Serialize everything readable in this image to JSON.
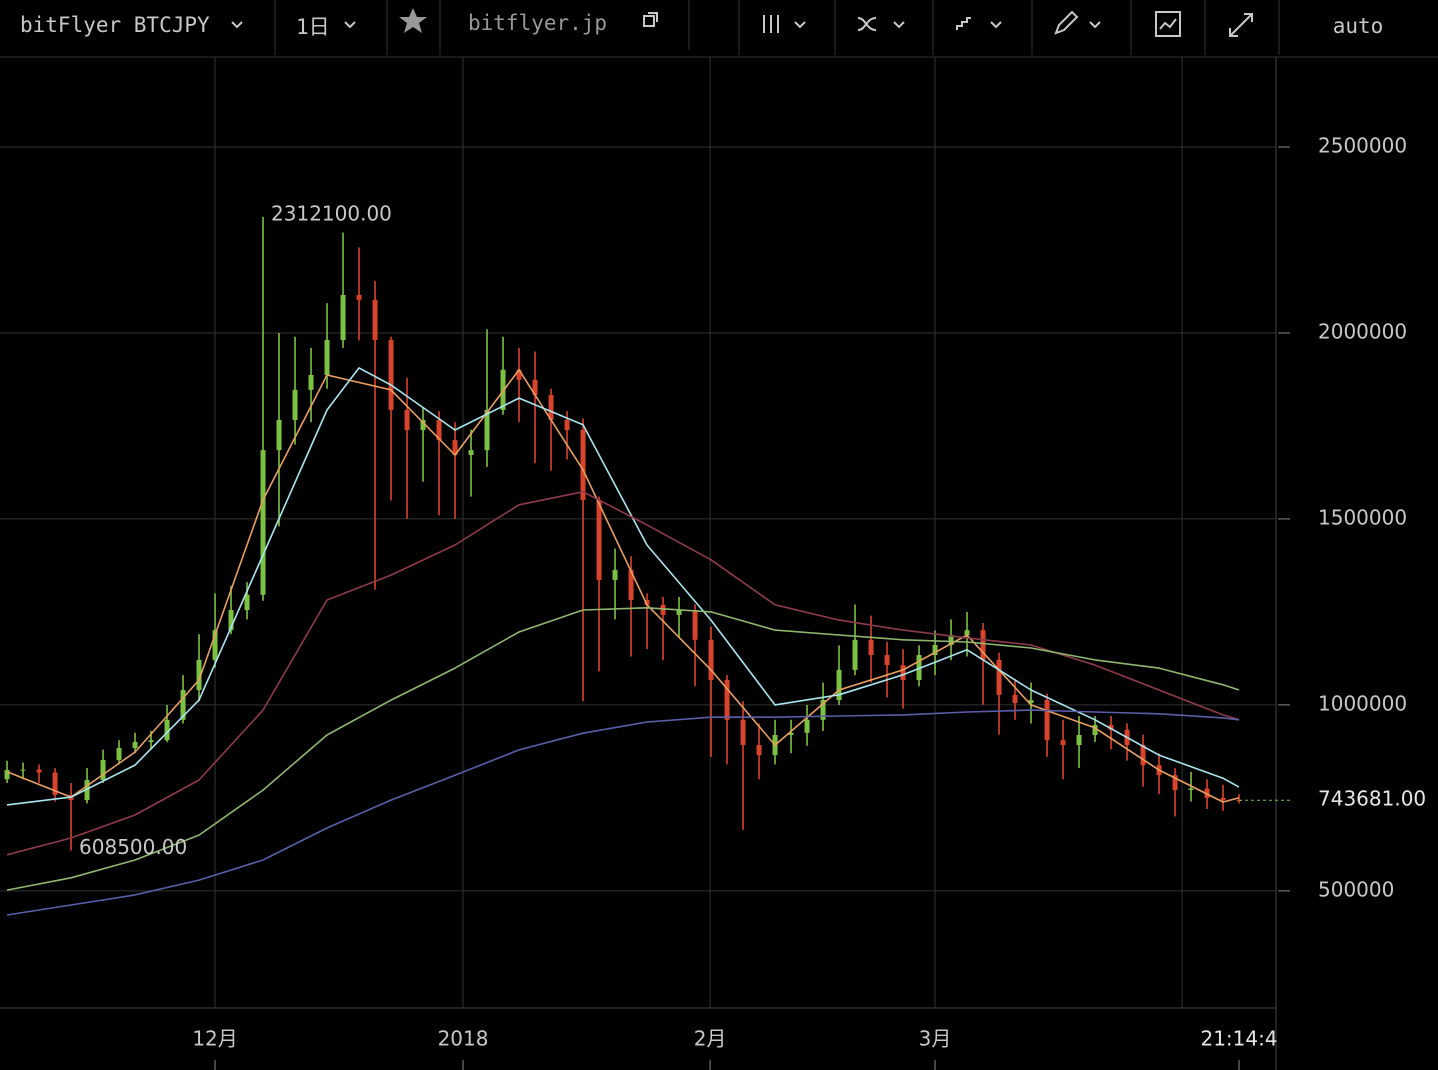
{
  "toolbar": {
    "symbol": "bitFlyer BTCJPY",
    "interval": "1日",
    "site": "bitflyer.jp",
    "scale_mode": "auto"
  },
  "chart_data": {
    "type": "candlestick",
    "up_color": "#7cc242",
    "down_color": "#d9422b",
    "grid": true,
    "ylim": [
      185000,
      2742000
    ],
    "yticks": [
      500000,
      1000000,
      1500000,
      2000000,
      2500000
    ],
    "xlim": [
      -0.44,
      79.31
    ],
    "xticks": [
      {
        "value": 13,
        "label": "12月"
      },
      {
        "value": 28.5,
        "label": "2018"
      },
      {
        "value": 43.94,
        "label": "2月"
      },
      {
        "value": 58,
        "label": "3月"
      },
      {
        "value": 73.44,
        "label": null
      }
    ],
    "time_label": {
      "value": 77,
      "label": "21:14:4"
    },
    "last_price": {
      "value": 743681,
      "label": "743681.00",
      "color": "#7cc242"
    },
    "annotations": [
      {
        "x": 16,
        "value": 2312100,
        "label": "2312100.00"
      },
      {
        "x": 4,
        "value": 608500,
        "label": "608500.00"
      }
    ],
    "candles": {
      "open": [
        800000,
        825000,
        826000,
        818000,
        758000,
        744000,
        798000,
        852000,
        884000,
        900000,
        905000,
        960000,
        1040000,
        1121000,
        1201000,
        1255000,
        1296000,
        1685000,
        1766000,
        1847000,
        1887000,
        1981000,
        2102000,
        2089000,
        1981000,
        1793000,
        1739000,
        1766000,
        1712000,
        1672000,
        1685000,
        1793000,
        1901000,
        1874000,
        1833000,
        1766000,
        1739000,
        1551000,
        1336000,
        1363000,
        1282000,
        1269000,
        1242000,
        1255000,
        1175000,
        1067000,
        960000,
        892000,
        865000,
        919000,
        925000,
        960000,
        1013000,
        1094000,
        1175000,
        1134000,
        1107000,
        1067000,
        1134000,
        1161000,
        1188000,
        1201000,
        1121000,
        1027000,
        1005000,
        1013000,
        905000,
        892000,
        919000,
        946000,
        933000,
        892000,
        838000,
        811000,
        771000,
        775000,
        750000,
        744000
      ],
      "high": [
        850000,
        845000,
        840000,
        830000,
        790000,
        830000,
        880000,
        905000,
        925000,
        930000,
        1000000,
        1080000,
        1190000,
        1300000,
        1320000,
        1330000,
        2312100,
        2000000,
        1990000,
        1960000,
        2080000,
        2270000,
        2230000,
        2140000,
        1990000,
        1880000,
        1800000,
        1790000,
        1760000,
        1740000,
        2010000,
        1990000,
        1960000,
        1950000,
        1850000,
        1790000,
        1770000,
        1560000,
        1420000,
        1400000,
        1300000,
        1290000,
        1290000,
        1270000,
        1210000,
        1080000,
        1010000,
        950000,
        960000,
        960000,
        1000000,
        1060000,
        1160000,
        1270000,
        1240000,
        1170000,
        1150000,
        1160000,
        1200000,
        1230000,
        1250000,
        1220000,
        1140000,
        1070000,
        1060000,
        1030000,
        960000,
        970000,
        970000,
        970000,
        950000,
        920000,
        870000,
        830000,
        820000,
        800000,
        785000,
        760000
      ],
      "low": [
        790000,
        800000,
        790000,
        740000,
        608500,
        735000,
        790000,
        840000,
        870000,
        880000,
        900000,
        950000,
        1010000,
        1100000,
        1190000,
        1230000,
        1280000,
        1480000,
        1700000,
        1760000,
        1850000,
        1960000,
        1980000,
        1310000,
        1550000,
        1500000,
        1600000,
        1510000,
        1500000,
        1560000,
        1640000,
        1780000,
        1760000,
        1650000,
        1630000,
        1660000,
        1010000,
        1090000,
        1230000,
        1130000,
        1150000,
        1120000,
        1180000,
        1050000,
        860000,
        840000,
        664000,
        800000,
        840000,
        870000,
        890000,
        930000,
        1000000,
        1080000,
        1060000,
        1020000,
        990000,
        1050000,
        1080000,
        1120000,
        1130000,
        1000000,
        920000,
        960000,
        950000,
        860000,
        800000,
        830000,
        900000,
        880000,
        850000,
        780000,
        760000,
        700000,
        740000,
        720000,
        715000,
        735000
      ],
      "close": [
        825000,
        826000,
        818000,
        758000,
        744000,
        798000,
        852000,
        884000,
        900000,
        905000,
        960000,
        1040000,
        1121000,
        1201000,
        1255000,
        1296000,
        1685000,
        1766000,
        1847000,
        1887000,
        1981000,
        2102000,
        2089000,
        1981000,
        1793000,
        1739000,
        1766000,
        1712000,
        1672000,
        1685000,
        1793000,
        1901000,
        1874000,
        1833000,
        1766000,
        1739000,
        1551000,
        1336000,
        1363000,
        1282000,
        1269000,
        1242000,
        1255000,
        1175000,
        1067000,
        960000,
        892000,
        865000,
        919000,
        925000,
        960000,
        1013000,
        1094000,
        1175000,
        1134000,
        1107000,
        1067000,
        1134000,
        1161000,
        1188000,
        1201000,
        1121000,
        1027000,
        1005000,
        1013000,
        905000,
        892000,
        919000,
        946000,
        933000,
        892000,
        838000,
        811000,
        771000,
        775000,
        750000,
        744000,
        743681
      ]
    },
    "series": [
      {
        "color": "#e8a060",
        "x": [
          0,
          4,
          8,
          12,
          16,
          20,
          24,
          28,
          32,
          36,
          40,
          44,
          48,
          52,
          56,
          60,
          64,
          68,
          72,
          76,
          77
        ],
        "values": [
          820000,
          752000,
          873000,
          1067000,
          1551000,
          1887000,
          1847000,
          1672000,
          1901000,
          1632000,
          1269000,
          1094000,
          892000,
          1040000,
          1094000,
          1188000,
          1000000,
          938000,
          825000,
          739000,
          750000
        ]
      },
      {
        "color": "#a8e6f0",
        "x": [
          0,
          4,
          8,
          12,
          16,
          20,
          22,
          24,
          28,
          32,
          36,
          40,
          44,
          48,
          52,
          56,
          60,
          64,
          68,
          72,
          76,
          77
        ],
        "values": [
          731000,
          752000,
          838000,
          1013000,
          1403000,
          1793000,
          1906000,
          1860000,
          1739000,
          1825000,
          1753000,
          1430000,
          1228000,
          1000000,
          1027000,
          1081000,
          1148000,
          1040000,
          960000,
          865000,
          803000,
          779000
        ]
      },
      {
        "color": "#8e3b4c",
        "x": [
          0,
          4,
          8,
          12,
          16,
          20,
          24,
          28,
          32,
          36,
          40,
          44,
          48,
          52,
          56,
          60,
          64,
          68,
          72,
          76,
          77
        ],
        "values": [
          597000,
          642000,
          704000,
          798000,
          986000,
          1282000,
          1349000,
          1430000,
          1538000,
          1573000,
          1484000,
          1390000,
          1269000,
          1228000,
          1201000,
          1180000,
          1161000,
          1107000,
          1040000,
          973000,
          960000
        ]
      },
      {
        "color": "#8fb86e",
        "x": [
          0,
          4,
          8,
          12,
          16,
          20,
          24,
          28,
          32,
          36,
          40,
          44,
          48,
          52,
          56,
          60,
          64,
          68,
          72,
          76,
          77
        ],
        "values": [
          502000,
          535000,
          583000,
          650000,
          771000,
          919000,
          1013000,
          1099000,
          1196000,
          1255000,
          1261000,
          1250000,
          1201000,
          1188000,
          1175000,
          1169000,
          1153000,
          1121000,
          1099000,
          1054000,
          1040000
        ]
      },
      {
        "color": "#5a5fa8",
        "x": [
          0,
          4,
          8,
          12,
          16,
          20,
          24,
          28,
          32,
          36,
          40,
          44,
          48,
          52,
          56,
          60,
          64,
          68,
          72,
          76,
          77
        ],
        "values": [
          435000,
          462000,
          489000,
          529000,
          583000,
          669000,
          744000,
          811000,
          879000,
          924000,
          954000,
          967000,
          967000,
          970000,
          973000,
          981000,
          986000,
          981000,
          976000,
          965000,
          960000
        ]
      }
    ]
  }
}
